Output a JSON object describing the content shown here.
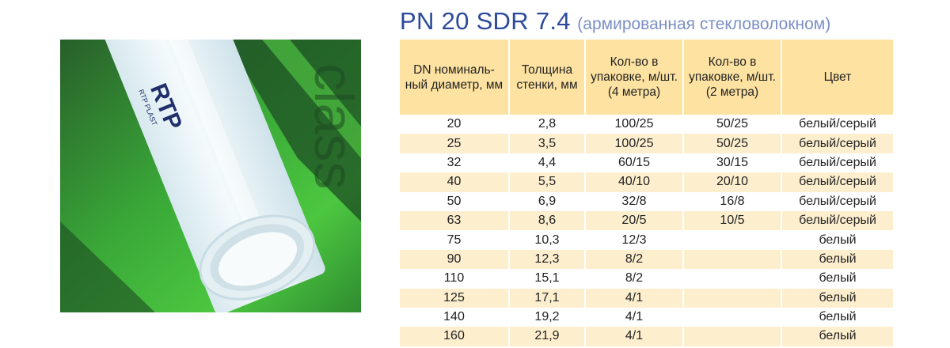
{
  "heading": {
    "main": "PN 20 SDR 7.4",
    "sub": "(армированная стекловолокном)"
  },
  "photo": {
    "pipe_logo_text": "RTP",
    "pipe_brand_text": "RTP PLAST",
    "background_text": "class",
    "colors": {
      "background_green": "#3fb83a",
      "pipe_white": "#e9f3f7"
    }
  },
  "table": {
    "headers": [
      "DN номиналь-ный диаметр, мм",
      "Толщина стенки, мм",
      "Кол-во в упаковке, м/шт. (4 метра)",
      "Кол-во в упаковке, м/шт. (2 метра)",
      "Цвет"
    ],
    "rows": [
      [
        "20",
        "2,8",
        "100/25",
        "50/25",
        "белый/серый"
      ],
      [
        "25",
        "3,5",
        "100/25",
        "50/25",
        "белый/серый"
      ],
      [
        "32",
        "4,4",
        "60/15",
        "30/15",
        "белый/серый"
      ],
      [
        "40",
        "5,5",
        "40/10",
        "20/10",
        "белый/серый"
      ],
      [
        "50",
        "6,9",
        "32/8",
        "16/8",
        "белый/серый"
      ],
      [
        "63",
        "8,6",
        "20/5",
        "10/5",
        "белый/серый"
      ],
      [
        "75",
        "10,3",
        "12/3",
        "",
        "белый"
      ],
      [
        "90",
        "12,3",
        "8/2",
        "",
        "белый"
      ],
      [
        "110",
        "15,1",
        "8/2",
        "",
        "белый"
      ],
      [
        "125",
        "17,1",
        "4/1",
        "",
        "белый"
      ],
      [
        "140",
        "19,2",
        "4/1",
        "",
        "белый"
      ],
      [
        "160",
        "21,9",
        "4/1",
        "",
        "белый"
      ]
    ]
  },
  "colors": {
    "heading_blue": "#2b4a9a",
    "heading_sub": "#7b8fc4",
    "header_bg": "#fde2a1",
    "stripe_bg": "#fdefce"
  }
}
